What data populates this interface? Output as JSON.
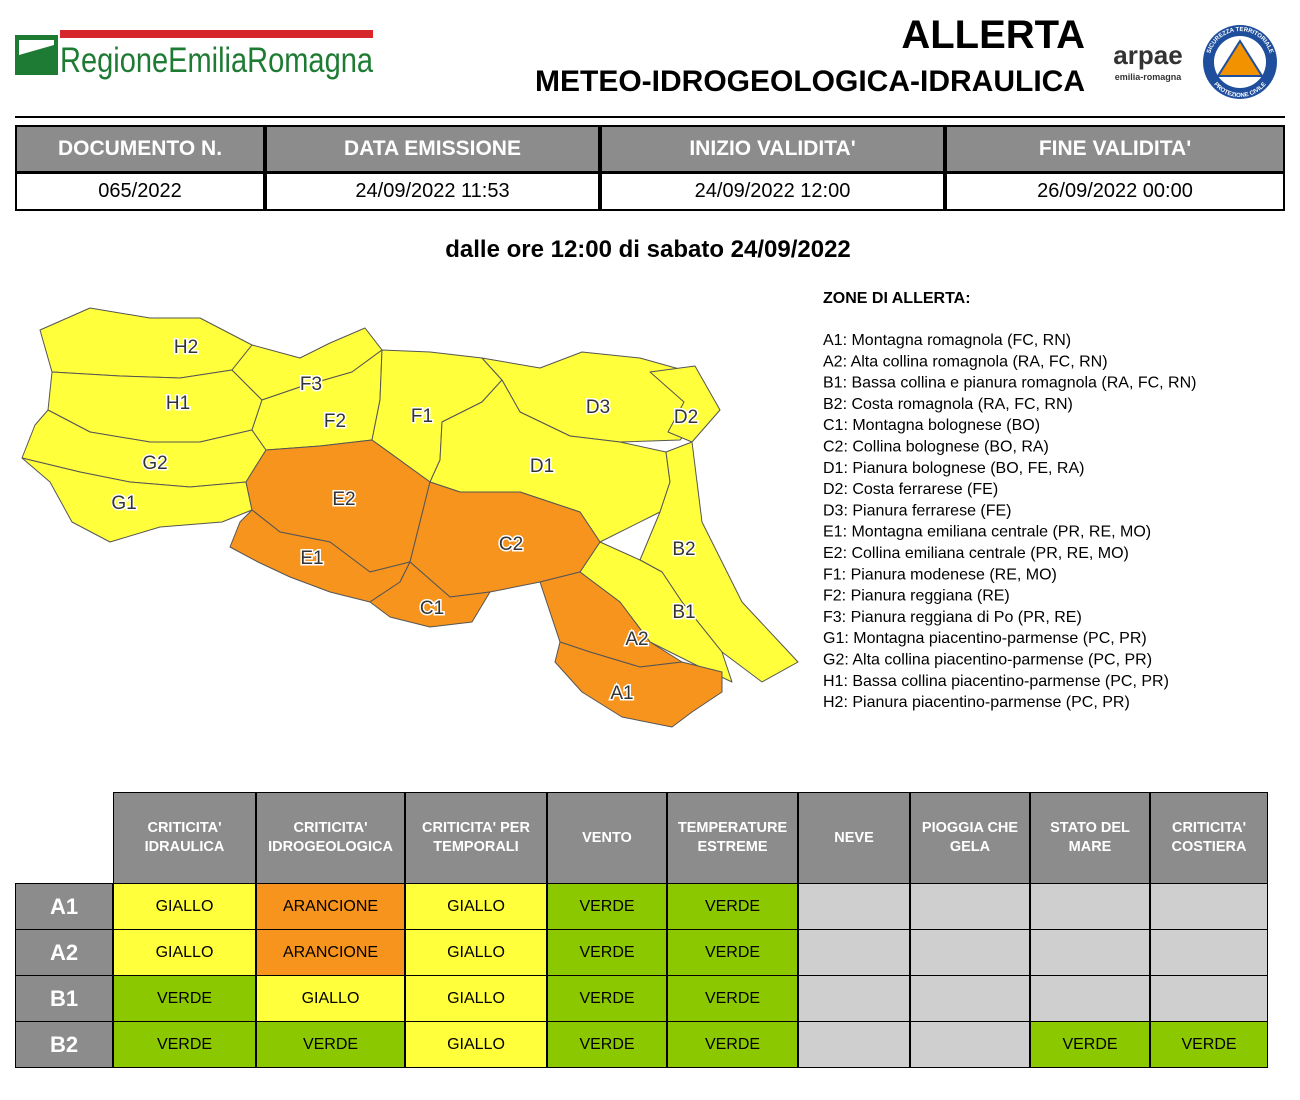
{
  "header": {
    "logo": "RegioneEmiliaRomagna",
    "title": "ALLERTA",
    "subtitle": "METEO-IDROGEOLOGICA-IDRAULICA",
    "arpae": "arpae",
    "arpae_sub": "emilia-romagna",
    "seal_top": "SICUREZZA TERRITORIALE",
    "seal_bottom": "PROTEZIONE CIVILE"
  },
  "info_table": {
    "headers": [
      "DOCUMENTO N.",
      "DATA EMISSIONE",
      "INIZIO VALIDITA'",
      "FINE VALIDITA'"
    ],
    "values": [
      "065/2022",
      "24/09/2022 11:53",
      "24/09/2022 12:00",
      "26/09/2022 00:00"
    ]
  },
  "subheading": "dalle ore 12:00 di sabato 24/09/2022",
  "map": {
    "zones": [
      {
        "label": "H2",
        "color": "#ffff3c"
      },
      {
        "label": "H1",
        "color": "#ffff3c"
      },
      {
        "label": "G2",
        "color": "#ffff3c"
      },
      {
        "label": "G1",
        "color": "#ffff3c"
      },
      {
        "label": "F3",
        "color": "#ffff3c"
      },
      {
        "label": "F2",
        "color": "#ffff3c"
      },
      {
        "label": "F1",
        "color": "#ffff3c"
      },
      {
        "label": "D3",
        "color": "#ffff3c"
      },
      {
        "label": "D2",
        "color": "#ffff3c"
      },
      {
        "label": "D1",
        "color": "#ffff3c"
      },
      {
        "label": "B2",
        "color": "#ffff3c"
      },
      {
        "label": "B1",
        "color": "#ffff3c"
      },
      {
        "label": "E2",
        "color": "#f7941d"
      },
      {
        "label": "E1",
        "color": "#f7941d"
      },
      {
        "label": "C2",
        "color": "#f7941d"
      },
      {
        "label": "C1",
        "color": "#f7941d"
      },
      {
        "label": "A2",
        "color": "#f7941d"
      },
      {
        "label": "A1",
        "color": "#f7941d"
      }
    ]
  },
  "legend": {
    "title": "ZONE DI ALLERTA:",
    "items": [
      "A1: Montagna romagnola (FC, RN)",
      "A2: Alta collina romagnola (RA, FC, RN)",
      "B1: Bassa collina e pianura romagnola (RA, FC, RN)",
      "B2: Costa romagnola (RA, FC, RN)",
      "C1: Montagna bolognese (BO)",
      "C2: Collina bolognese (BO, RA)",
      "D1: Pianura bolognese (BO, FE, RA)",
      "D2: Costa ferrarese (FE)",
      "D3: Pianura ferrarese (FE)",
      "E1: Montagna emiliana centrale (PR, RE, MO)",
      "E2: Collina emiliana centrale (PR, RE, MO)",
      "F1: Pianura modenese (RE, MO)",
      "F2: Pianura reggiana (RE)",
      "F3: Pianura reggiana di Po (PR, RE)",
      "G1: Montagna piacentino-parmense (PC, PR)",
      "G2: Alta collina piacentino-parmense (PC, PR)",
      "H1: Bassa collina piacentino-parmense (PC, PR)",
      "H2: Pianura piacentino-parmense (PC, PR)"
    ]
  },
  "table": {
    "headers": [
      "CRITICITA' IDRAULICA",
      "CRITICITA' IDROGEOLOGICA",
      "CRITICITA' PER TEMPORALI",
      "VENTO",
      "TEMPERATURE ESTREME",
      "NEVE",
      "PIOGGIA CHE GELA",
      "STATO DEL MARE",
      "CRITICITA' COSTIERA"
    ],
    "rows": [
      {
        "zone": "A1",
        "cells": [
          "GIALLO",
          "ARANCIONE",
          "GIALLO",
          "VERDE",
          "VERDE",
          null,
          null,
          null,
          null
        ]
      },
      {
        "zone": "A2",
        "cells": [
          "GIALLO",
          "ARANCIONE",
          "GIALLO",
          "VERDE",
          "VERDE",
          null,
          null,
          null,
          null
        ]
      },
      {
        "zone": "B1",
        "cells": [
          "VERDE",
          "GIALLO",
          "GIALLO",
          "VERDE",
          "VERDE",
          null,
          null,
          null,
          null
        ]
      },
      {
        "zone": "B2",
        "cells": [
          "VERDE",
          "VERDE",
          "GIALLO",
          "VERDE",
          "VERDE",
          null,
          null,
          "VERDE",
          "VERDE"
        ]
      }
    ]
  }
}
